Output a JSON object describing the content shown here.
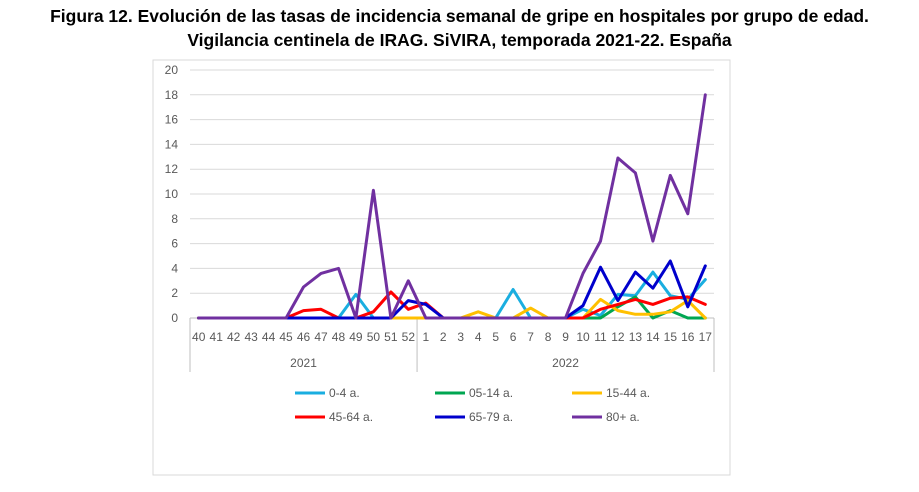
{
  "chart_data": {
    "type": "line",
    "title": "Figura 12. Evolución de las tasas de incidencia semanal de gripe en hospitales por grupo de edad.",
    "subtitle": "Vigilancia centinela de IRAG. SiVIRA, temporada 2021-22. España",
    "xlabel": "",
    "ylabel": "",
    "ylim": [
      0,
      20
    ],
    "yticks": [
      "20",
      "18",
      "16",
      "14",
      "12",
      "10",
      "8",
      "6",
      "4",
      "2",
      "0"
    ],
    "categories": [
      "40",
      "41",
      "42",
      "43",
      "44",
      "45",
      "46",
      "47",
      "48",
      "49",
      "50",
      "51",
      "52",
      "1",
      "2",
      "3",
      "4",
      "5",
      "6",
      "7",
      "8",
      "9",
      "10",
      "11",
      "12",
      "13",
      "14",
      "15",
      "16",
      "17"
    ],
    "year_groups": [
      {
        "label": "2021",
        "start": 0,
        "end": 12
      },
      {
        "label": "2022",
        "start": 13,
        "end": 29
      }
    ],
    "grid": true,
    "legend_position": "bottom",
    "series": [
      {
        "name": "0-4 a.",
        "color": "#1AAEE0",
        "values": [
          0,
          0,
          0,
          0,
          0,
          0,
          0,
          0,
          0,
          1.9,
          0,
          0,
          0,
          0,
          0,
          0,
          0,
          0,
          2.3,
          0,
          0,
          0,
          0.7,
          0.2,
          1.9,
          1.8,
          3.7,
          1.8,
          1.5,
          3.1
        ]
      },
      {
        "name": "05-14 a.",
        "color": "#00A651",
        "values": [
          0,
          0,
          0,
          0,
          0,
          0,
          0,
          0,
          0,
          0,
          0,
          0,
          0,
          0,
          0,
          0,
          0,
          0,
          0,
          0,
          0,
          0,
          0,
          0,
          0.9,
          1.7,
          0,
          0.6,
          0,
          0
        ]
      },
      {
        "name": "15-44 a.",
        "color": "#FFC000",
        "values": [
          0,
          0,
          0,
          0,
          0,
          0,
          0,
          0,
          0,
          0,
          0,
          0,
          0,
          0,
          0,
          0,
          0.5,
          0,
          0,
          0.8,
          0,
          0,
          0,
          1.5,
          0.6,
          0.3,
          0.3,
          0.5,
          1.4,
          0
        ]
      },
      {
        "name": "45-64 a.",
        "color": "#FF0000",
        "values": [
          0,
          0,
          0,
          0,
          0,
          0,
          0.6,
          0.7,
          0,
          0,
          0.5,
          2.1,
          0.7,
          1.2,
          0,
          0,
          0,
          0,
          0,
          0,
          0,
          0,
          0,
          0.7,
          1.1,
          1.5,
          1.1,
          1.6,
          1.7,
          1.1
        ]
      },
      {
        "name": "65-79 a.",
        "color": "#0000CC",
        "values": [
          0,
          0,
          0,
          0,
          0,
          0,
          0,
          0,
          0,
          0,
          0,
          0,
          1.4,
          1.1,
          0,
          0,
          0,
          0,
          0,
          0,
          0,
          0,
          1,
          4.1,
          1.4,
          3.7,
          2.4,
          4.6,
          0.9,
          4.2
        ]
      },
      {
        "name": "80+ a.",
        "color": "#7030A0",
        "values": [
          0,
          0,
          0,
          0,
          0,
          0,
          2.5,
          3.6,
          4,
          0,
          10.3,
          0,
          3,
          0,
          0,
          0,
          0,
          0,
          0,
          0,
          0,
          0,
          3.6,
          6.2,
          12.9,
          11.7,
          6.2,
          11.5,
          8.4,
          18
        ]
      }
    ]
  }
}
